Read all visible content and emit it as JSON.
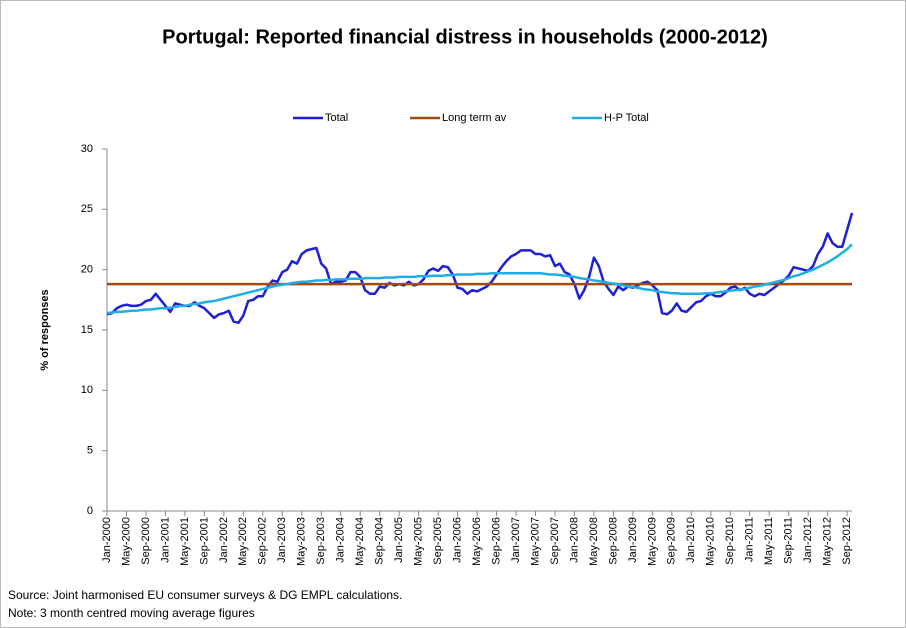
{
  "chart_data": {
    "type": "line",
    "title": "Portugal: Reported financial distress in households (2000-2012)",
    "y_label": "% of responses",
    "source": "Source: Joint harmonised EU consumer surveys & DG EMPL calculations.",
    "note": "Note: 3 month centred moving average figures",
    "ylim": [
      0,
      30
    ],
    "yticks": [
      0,
      5,
      10,
      15,
      20,
      25,
      30
    ],
    "grid": false,
    "categories": [
      "Jan-2000",
      null,
      null,
      null,
      "May-2000",
      null,
      null,
      null,
      "Sep-2000",
      null,
      null,
      null,
      "Jan-2001",
      null,
      null,
      null,
      "May-2001",
      null,
      null,
      null,
      "Sep-2001",
      null,
      null,
      null,
      "Jan-2002",
      null,
      null,
      null,
      "May-2002",
      null,
      null,
      null,
      "Sep-2002",
      null,
      null,
      null,
      "Jan-2003",
      null,
      null,
      null,
      "May-2003",
      null,
      null,
      null,
      "Sep-2003",
      null,
      null,
      null,
      "Jan-2004",
      null,
      null,
      null,
      "May-2004",
      null,
      null,
      null,
      "Sep-2004",
      null,
      null,
      null,
      "Jan-2005",
      null,
      null,
      null,
      "May-2005",
      null,
      null,
      null,
      "Sep-2005",
      null,
      null,
      null,
      "Jan-2006",
      null,
      null,
      null,
      "May-2006",
      null,
      null,
      null,
      "Sep-2006",
      null,
      null,
      null,
      "Jan-2007",
      null,
      null,
      null,
      "May-2007",
      null,
      null,
      null,
      "Sep-2007",
      null,
      null,
      null,
      "Jan-2008",
      null,
      null,
      null,
      "May-2008",
      null,
      null,
      null,
      "Sep-2008",
      null,
      null,
      null,
      "Jan-2009",
      null,
      null,
      null,
      "May-2009",
      null,
      null,
      null,
      "Sep-2009",
      null,
      null,
      null,
      "Jan-2010",
      null,
      null,
      null,
      "May-2010",
      null,
      null,
      null,
      "Sep-2010",
      null,
      null,
      null,
      "Jan-2011",
      null,
      null,
      null,
      "May-2011",
      null,
      null,
      null,
      "Sep-2011",
      null,
      null,
      null,
      "Jan-2012",
      null,
      null,
      null,
      "May-2012",
      null,
      null,
      null,
      "Sep-2012",
      null
    ],
    "series": [
      {
        "name": "Total",
        "color": "#1f1fd6",
        "width": 2.5,
        "values": [
          16.3,
          16.4,
          16.8,
          17,
          17.1,
          17,
          17,
          17.1,
          17.4,
          17.5,
          18,
          17.5,
          17,
          16.5,
          17.2,
          17.1,
          17,
          17,
          17.3,
          17,
          16.8,
          16.4,
          16,
          16.3,
          16.4,
          16.6,
          15.7,
          15.6,
          16.2,
          17.4,
          17.5,
          17.8,
          17.8,
          18.6,
          19.1,
          19,
          19.8,
          20,
          20.7,
          20.5,
          21.3,
          21.6,
          21.7,
          21.8,
          20.5,
          20.1,
          18.8,
          19,
          19,
          19.1,
          19.8,
          19.8,
          19.4,
          18.3,
          18,
          18,
          18.6,
          18.5,
          18.9,
          18.7,
          18.8,
          18.7,
          19,
          18.7,
          18.8,
          19.2,
          19.9,
          20.1,
          19.9,
          20.3,
          20.2,
          19.6,
          18.5,
          18.4,
          18,
          18.3,
          18.2,
          18.4,
          18.6,
          19,
          19.6,
          20.2,
          20.7,
          21.1,
          21.3,
          21.6,
          21.6,
          21.6,
          21.3,
          21.3,
          21.1,
          21.2,
          20.3,
          20.5,
          19.8,
          19.6,
          18.8,
          17.6,
          18.3,
          19.4,
          21,
          20.3,
          19,
          18.4,
          17.9,
          18.6,
          18.3,
          18.6,
          18.5,
          18.7,
          18.9,
          19,
          18.7,
          18.3,
          16.4,
          16.3,
          16.6,
          17.2,
          16.6,
          16.5,
          16.9,
          17.3,
          17.4,
          17.8,
          18,
          17.8,
          17.8,
          18.1,
          18.5,
          18.6,
          18.3,
          18.5,
          18,
          17.8,
          18,
          17.9,
          18.2,
          18.5,
          18.8,
          19.1,
          19.5,
          20.2,
          20.1,
          20,
          19.9,
          20.3,
          21.3,
          21.9,
          23,
          22.2,
          21.9,
          21.9,
          23.3,
          24.7
        ]
      },
      {
        "name": "Long term av",
        "color": "#a04a14",
        "width": 2.5,
        "values": [
          18.8,
          18.8,
          18.8,
          18.8,
          18.8,
          18.8,
          18.8,
          18.8,
          18.8,
          18.8,
          18.8,
          18.8,
          18.8,
          18.8,
          18.8,
          18.8,
          18.8,
          18.8,
          18.8,
          18.8,
          18.8,
          18.8,
          18.8,
          18.8,
          18.8,
          18.8,
          18.8,
          18.8,
          18.8,
          18.8,
          18.8,
          18.8,
          18.8,
          18.8,
          18.8,
          18.8,
          18.8,
          18.8,
          18.8,
          18.8,
          18.8,
          18.8,
          18.8,
          18.8,
          18.8,
          18.8,
          18.8,
          18.8,
          18.8,
          18.8,
          18.8,
          18.8,
          18.8,
          18.8,
          18.8,
          18.8,
          18.8,
          18.8,
          18.8,
          18.8,
          18.8,
          18.8,
          18.8,
          18.8,
          18.8,
          18.8,
          18.8,
          18.8,
          18.8,
          18.8,
          18.8,
          18.8,
          18.8,
          18.8,
          18.8,
          18.8,
          18.8,
          18.8,
          18.8,
          18.8,
          18.8,
          18.8,
          18.8,
          18.8,
          18.8,
          18.8,
          18.8,
          18.8,
          18.8,
          18.8,
          18.8,
          18.8,
          18.8,
          18.8,
          18.8,
          18.8,
          18.8,
          18.8,
          18.8,
          18.8,
          18.8,
          18.8,
          18.8,
          18.8,
          18.8,
          18.8,
          18.8,
          18.8,
          18.8,
          18.8,
          18.8,
          18.8,
          18.8,
          18.8,
          18.8,
          18.8,
          18.8,
          18.8,
          18.8,
          18.8,
          18.8,
          18.8,
          18.8,
          18.8,
          18.8,
          18.8,
          18.8,
          18.8,
          18.8,
          18.8,
          18.8,
          18.8,
          18.8,
          18.8,
          18.8,
          18.8,
          18.8,
          18.8,
          18.8,
          18.8,
          18.8,
          18.8,
          18.8,
          18.8,
          18.8,
          18.8,
          18.8,
          18.8,
          18.8,
          18.8,
          18.8,
          18.8,
          18.8,
          18.8
        ]
      },
      {
        "name": "H-P Total",
        "color": "#1eaee6",
        "width": 2.5,
        "values": [
          16.4,
          16.45,
          16.5,
          16.5,
          16.55,
          16.6,
          16.6,
          16.65,
          16.7,
          16.7,
          16.75,
          16.8,
          16.8,
          16.85,
          16.9,
          17,
          17,
          17.1,
          17.15,
          17.2,
          17.3,
          17.35,
          17.4,
          17.5,
          17.6,
          17.7,
          17.8,
          17.9,
          18,
          18.1,
          18.2,
          18.3,
          18.4,
          18.5,
          18.6,
          18.7,
          18.75,
          18.8,
          18.9,
          18.95,
          19,
          19,
          19.05,
          19.1,
          19.1,
          19.15,
          19.15,
          19.2,
          19.2,
          19.2,
          19.25,
          19.25,
          19.25,
          19.3,
          19.3,
          19.3,
          19.3,
          19.35,
          19.35,
          19.35,
          19.4,
          19.4,
          19.4,
          19.4,
          19.45,
          19.45,
          19.45,
          19.5,
          19.5,
          19.5,
          19.55,
          19.55,
          19.6,
          19.6,
          19.6,
          19.6,
          19.65,
          19.65,
          19.65,
          19.7,
          19.7,
          19.7,
          19.7,
          19.7,
          19.7,
          19.7,
          19.7,
          19.7,
          19.7,
          19.7,
          19.65,
          19.6,
          19.6,
          19.55,
          19.5,
          19.45,
          19.4,
          19.3,
          19.25,
          19.2,
          19.1,
          19.05,
          19,
          18.9,
          18.85,
          18.8,
          18.7,
          18.6,
          18.55,
          18.5,
          18.4,
          18.35,
          18.3,
          18.2,
          18.15,
          18.1,
          18.05,
          18.05,
          18,
          18,
          18,
          18,
          18,
          18.05,
          18.05,
          18.1,
          18.15,
          18.2,
          18.25,
          18.3,
          18.35,
          18.4,
          18.5,
          18.6,
          18.65,
          18.75,
          18.85,
          18.95,
          19.05,
          19.15,
          19.3,
          19.45,
          19.55,
          19.7,
          19.85,
          20,
          20.2,
          20.4,
          20.6,
          20.85,
          21.1,
          21.4,
          21.7,
          22.1
        ]
      }
    ]
  }
}
